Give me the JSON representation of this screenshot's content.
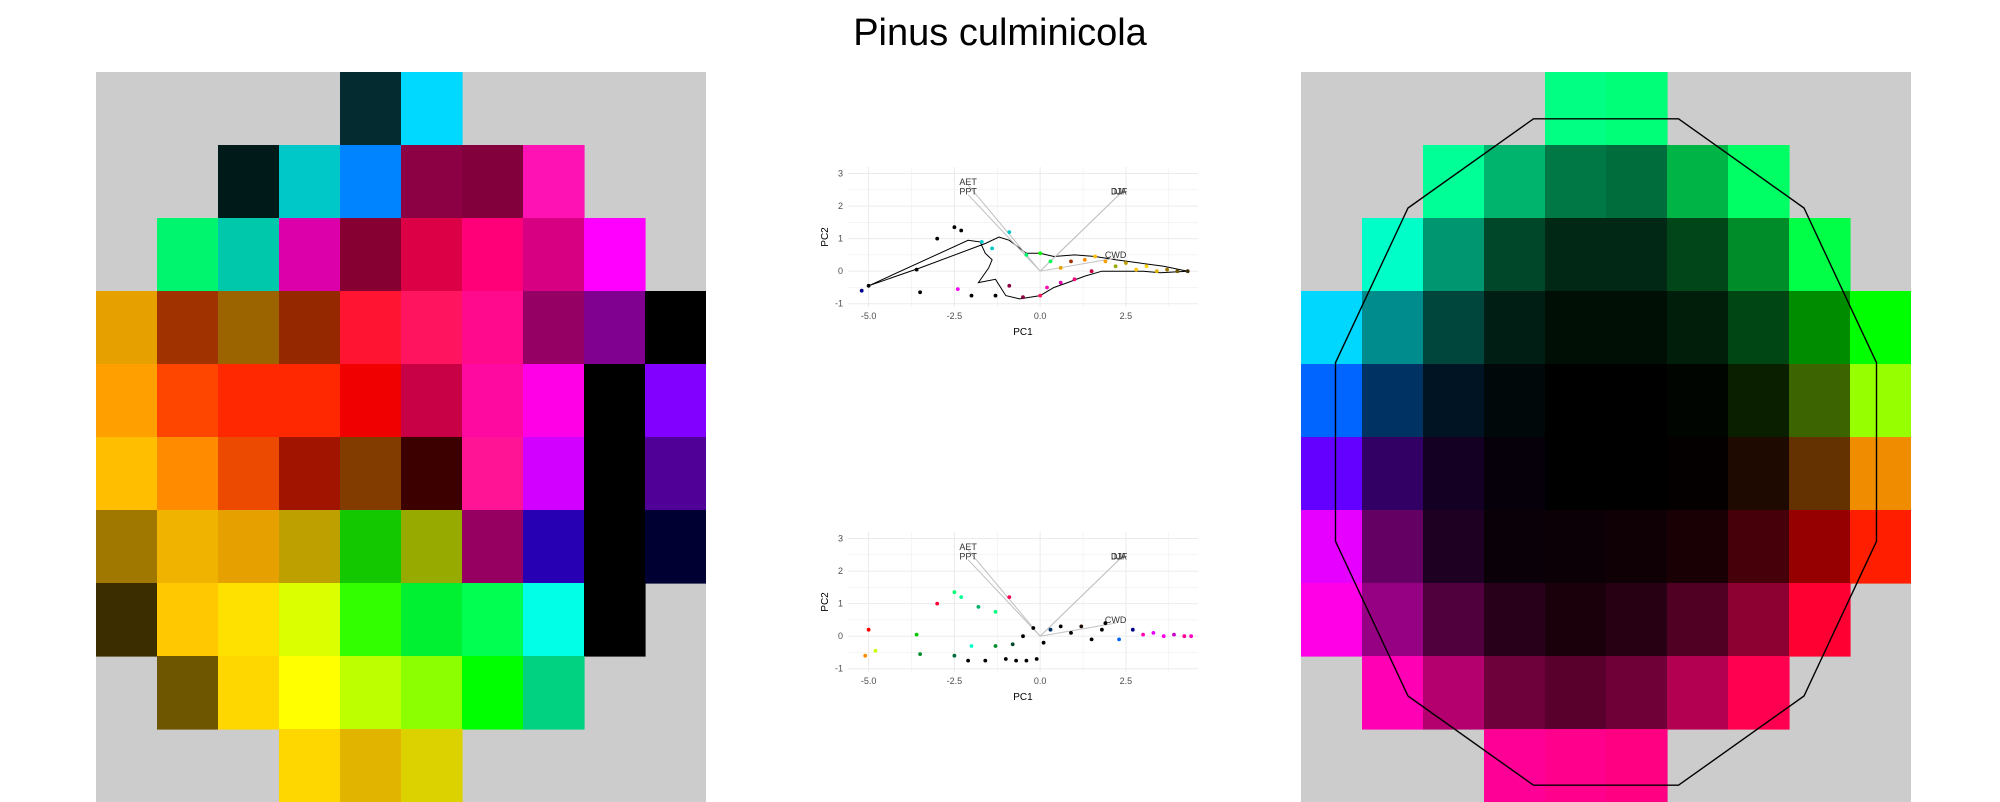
{
  "title": "Pinus culminicola",
  "colors": {
    "background": "#ffffff",
    "panel_gray": "#cccccc",
    "grid_line": "#ebebeb",
    "axis_text": "#4d4d4d",
    "arrow_line": "#c0c0c0"
  },
  "left_grid": {
    "cells": [
      [
        null,
        null,
        null,
        null,
        "#032b30",
        "#00d9ff",
        null,
        null,
        null,
        null
      ],
      [
        null,
        null,
        "#001a19",
        "#00c8c8",
        "#0084ff",
        "#8c0044",
        "#82003c",
        "#ff12b4",
        null,
        null
      ],
      [
        null,
        "#00f56e",
        "#00c8aa",
        "#dc00aa",
        "#870032",
        "#dc0046",
        "#ff0078",
        "#d70082",
        "#ff00ff",
        null
      ],
      [
        "#e6a000",
        "#a03200",
        "#9b6400",
        "#962800",
        "#ff1432",
        "#ff1460",
        "#ff0a8c",
        "#940064",
        "#800090",
        "#000000"
      ],
      [
        "#ffa000",
        "#ff4600",
        "#ff2800",
        "#ff2800",
        "#f00000",
        "#c80046",
        "#ff0aa0",
        "#ff00e6",
        "#000000",
        "#8200ff"
      ],
      [
        "#ffbe00",
        "#ff8c00",
        "#eb4a00",
        "#a01400",
        "#823c00",
        "#3c0000",
        "#ff1496",
        "#d200ff",
        "#000000",
        "#500096"
      ],
      [
        "#a07800",
        "#f0b400",
        "#e6a000",
        "#bea000",
        "#14c800",
        "#96aa00",
        "#960060",
        "#2800b4",
        "#000000",
        "#000032"
      ],
      [
        "#3c2d00",
        "#ffc800",
        "#ffe100",
        "#dcff00",
        "#32ff00",
        "#00f032",
        "#00ff50",
        "#00ffe6",
        "#000000",
        null
      ],
      [
        null,
        "#6e5500",
        "#ffd700",
        "#ffff00",
        "#beff00",
        "#8cff00",
        "#00ff00",
        "#00d282",
        null,
        null
      ],
      [
        null,
        null,
        null,
        "#ffd700",
        "#e1b400",
        "#dcd200",
        null,
        null,
        null,
        null
      ]
    ]
  },
  "right_grid": {
    "cells": [
      [
        null,
        null,
        null,
        null,
        "#00ff82",
        "#00ff78",
        null,
        null,
        null,
        null
      ],
      [
        null,
        null,
        "#00ff96",
        "#00b46e",
        "#007846",
        "#006e3c",
        "#00b446",
        "#00ff64",
        null,
        null
      ],
      [
        null,
        "#00ffc8",
        "#009670",
        "#004628",
        "#002814",
        "#002814",
        "#004619",
        "#008c28",
        "#00ff46",
        null
      ],
      [
        "#00d7ff",
        "#008c8c",
        "#00463c",
        "#001e14",
        "#000f05",
        "#000f05",
        "#001e0a",
        "#004614",
        "#008c00",
        "#00ff00"
      ],
      [
        "#0064ff",
        "#003264",
        "#001423",
        "#00080a",
        "#000000",
        "#000000",
        "#000500",
        "#0a1e00",
        "#3c6400",
        "#96ff00"
      ],
      [
        "#6400ff",
        "#320064",
        "#140023",
        "#05000a",
        "#000000",
        "#000000",
        "#050000",
        "#1e0a00",
        "#643200",
        "#f08c00"
      ],
      [
        "#e600ff",
        "#640064",
        "#1e0023",
        "#0a0008",
        "#0a0005",
        "#0f0005",
        "#190005",
        "#46000a",
        "#960000",
        "#ff1e00"
      ],
      [
        "#ff00e6",
        "#960082",
        "#50003c",
        "#280019",
        "#19000a",
        "#280014",
        "#500023",
        "#8c0032",
        "#ff0032",
        null
      ],
      [
        null,
        "#ff00b4",
        "#b4006e",
        "#6e003c",
        "#5a002d",
        "#6e0037",
        "#b40050",
        "#ff0050",
        null,
        null
      ],
      [
        null,
        null,
        null,
        "#ff0096",
        "#ff008c",
        "#ff0082",
        null,
        null,
        null,
        null
      ]
    ],
    "outline_color": "#000000"
  },
  "chart_data": [
    {
      "type": "scatter",
      "xlabel": "PC1",
      "ylabel": "PC2",
      "xlim": [
        -5.6,
        4.6
      ],
      "ylim": [
        -1.1,
        3.2
      ],
      "xticks": [
        "-5.0",
        "-2.5",
        "0.0",
        "2.5"
      ],
      "xtick_values": [
        -5,
        -2.5,
        0,
        2.5
      ],
      "yticks": [
        "-1",
        "0",
        "1",
        "2",
        "3"
      ],
      "ytick_values": [
        -1,
        0,
        1,
        2,
        3
      ],
      "grid": true,
      "loadings": [
        {
          "label": "AET",
          "x": -2.1,
          "y": 2.65
        },
        {
          "label": "PPT",
          "x": -2.1,
          "y": 2.35
        },
        {
          "label": "DJF",
          "x": 2.3,
          "y": 2.35
        },
        {
          "label": "JJA",
          "x": 2.3,
          "y": 2.35
        },
        {
          "label": "CWD",
          "x": 2.2,
          "y": 0.4
        }
      ],
      "points": [
        {
          "x": -5.0,
          "y": -0.45,
          "color": "#000000"
        },
        {
          "x": -5.2,
          "y": -0.6,
          "color": "#00008b"
        },
        {
          "x": -3.6,
          "y": 0.05,
          "color": "#000000"
        },
        {
          "x": -3.5,
          "y": -0.65,
          "color": "#000000"
        },
        {
          "x": -3.0,
          "y": 1.0,
          "color": "#000000"
        },
        {
          "x": -2.5,
          "y": 1.35,
          "color": "#000000"
        },
        {
          "x": -2.3,
          "y": 1.25,
          "color": "#000000"
        },
        {
          "x": -1.7,
          "y": 0.9,
          "color": "#00c8c8"
        },
        {
          "x": -1.4,
          "y": 0.7,
          "color": "#00c8c8"
        },
        {
          "x": -0.9,
          "y": 1.2,
          "color": "#00c8c8"
        },
        {
          "x": -2.4,
          "y": -0.55,
          "color": "#ff00ff"
        },
        {
          "x": -2.0,
          "y": -0.75,
          "color": "#000000"
        },
        {
          "x": -1.3,
          "y": -0.75,
          "color": "#000000"
        },
        {
          "x": -0.9,
          "y": -0.45,
          "color": "#8c0044"
        },
        {
          "x": -0.5,
          "y": -0.8,
          "color": "#8c0044"
        },
        {
          "x": 0.0,
          "y": -0.75,
          "color": "#ff1460"
        },
        {
          "x": 0.2,
          "y": -0.5,
          "color": "#ff12b4"
        },
        {
          "x": 0.6,
          "y": -0.35,
          "color": "#dc00aa"
        },
        {
          "x": 1.0,
          "y": -0.25,
          "color": "#ff0078"
        },
        {
          "x": 1.5,
          "y": 0.0,
          "color": "#c80046"
        },
        {
          "x": -0.4,
          "y": 0.5,
          "color": "#00f56e"
        },
        {
          "x": 0.0,
          "y": 0.55,
          "color": "#00ff00"
        },
        {
          "x": 0.3,
          "y": 0.3,
          "color": "#00ff50"
        },
        {
          "x": 0.6,
          "y": 0.1,
          "color": "#e6a000"
        },
        {
          "x": 0.9,
          "y": 0.3,
          "color": "#a03200"
        },
        {
          "x": 1.3,
          "y": 0.35,
          "color": "#ff8c00"
        },
        {
          "x": 1.6,
          "y": 0.45,
          "color": "#ffbe00"
        },
        {
          "x": 1.9,
          "y": 0.3,
          "color": "#ffa000"
        },
        {
          "x": 2.2,
          "y": 0.15,
          "color": "#96aa00"
        },
        {
          "x": 2.5,
          "y": 0.25,
          "color": "#bea000"
        },
        {
          "x": 2.8,
          "y": 0.05,
          "color": "#ffc800"
        },
        {
          "x": 3.1,
          "y": 0.15,
          "color": "#ffd700"
        },
        {
          "x": 3.4,
          "y": 0.0,
          "color": "#e1b400"
        },
        {
          "x": 3.7,
          "y": 0.05,
          "color": "#a07800"
        },
        {
          "x": 4.0,
          "y": 0.0,
          "color": "#6e5500"
        },
        {
          "x": 4.3,
          "y": 0.0,
          "color": "#3c2d00"
        }
      ],
      "hull": [
        [
          -5.0,
          -0.45
        ],
        [
          -2.1,
          0.95
        ],
        [
          -1.75,
          0.9
        ],
        [
          -1.6,
          0.55
        ],
        [
          -1.4,
          0.35
        ],
        [
          -1.5,
          0.1
        ],
        [
          -1.8,
          -0.35
        ],
        [
          -1.3,
          -0.25
        ],
        [
          -1.0,
          -0.75
        ],
        [
          -0.6,
          -0.85
        ],
        [
          0.0,
          -0.75
        ],
        [
          0.4,
          -0.5
        ],
        [
          0.8,
          -0.35
        ],
        [
          1.3,
          -0.15
        ],
        [
          1.8,
          0.0
        ],
        [
          2.4,
          0.0
        ],
        [
          3.0,
          0.0
        ],
        [
          3.5,
          -0.05
        ],
        [
          4.3,
          0.0
        ],
        [
          3.6,
          0.15
        ],
        [
          2.9,
          0.25
        ],
        [
          2.2,
          0.35
        ],
        [
          1.6,
          0.45
        ],
        [
          1.0,
          0.5
        ],
        [
          0.4,
          0.45
        ],
        [
          0.0,
          0.55
        ],
        [
          -0.4,
          0.55
        ],
        [
          -0.9,
          0.95
        ],
        [
          -1.2,
          1.05
        ],
        [
          -1.6,
          0.85
        ],
        [
          -3.5,
          0.1
        ],
        [
          -5.0,
          -0.45
        ]
      ]
    },
    {
      "type": "scatter",
      "xlabel": "PC1",
      "ylabel": "PC2",
      "xlim": [
        -5.6,
        4.6
      ],
      "ylim": [
        -1.1,
        3.2
      ],
      "xticks": [
        "-5.0",
        "-2.5",
        "0.0",
        "2.5"
      ],
      "xtick_values": [
        -5,
        -2.5,
        0,
        2.5
      ],
      "yticks": [
        "-1",
        "0",
        "1",
        "2",
        "3"
      ],
      "ytick_values": [
        -1,
        0,
        1,
        2,
        3
      ],
      "grid": true,
      "loadings": [
        {
          "label": "AET",
          "x": -2.1,
          "y": 2.65
        },
        {
          "label": "PPT",
          "x": -2.1,
          "y": 2.35
        },
        {
          "label": "DJF",
          "x": 2.3,
          "y": 2.35
        },
        {
          "label": "JJA",
          "x": 2.3,
          "y": 2.35
        },
        {
          "label": "CWD",
          "x": 2.2,
          "y": 0.4
        }
      ],
      "points": [
        {
          "x": -5.0,
          "y": 0.2,
          "color": "#ff0000"
        },
        {
          "x": -4.8,
          "y": -0.45,
          "color": "#c8ff00"
        },
        {
          "x": -5.1,
          "y": -0.6,
          "color": "#ff8c00"
        },
        {
          "x": -3.6,
          "y": 0.05,
          "color": "#00c800"
        },
        {
          "x": -3.5,
          "y": -0.55,
          "color": "#008c28"
        },
        {
          "x": -3.0,
          "y": 1.0,
          "color": "#ff0032"
        },
        {
          "x": -2.5,
          "y": 1.35,
          "color": "#00ff78"
        },
        {
          "x": -2.3,
          "y": 1.2,
          "color": "#00ff96"
        },
        {
          "x": -1.8,
          "y": 0.9,
          "color": "#00b46e"
        },
        {
          "x": -1.3,
          "y": 0.75,
          "color": "#00ff82"
        },
        {
          "x": -0.9,
          "y": 1.2,
          "color": "#ff0050"
        },
        {
          "x": -2.5,
          "y": -0.6,
          "color": "#006e3c"
        },
        {
          "x": -2.0,
          "y": -0.3,
          "color": "#00ffc8"
        },
        {
          "x": -2.1,
          "y": -0.75,
          "color": "#000000"
        },
        {
          "x": -1.6,
          "y": -0.75,
          "color": "#000000"
        },
        {
          "x": -1.3,
          "y": -0.3,
          "color": "#008c28"
        },
        {
          "x": -1.0,
          "y": -0.7,
          "color": "#000000"
        },
        {
          "x": -0.7,
          "y": -0.75,
          "color": "#000000"
        },
        {
          "x": -0.4,
          "y": -0.75,
          "color": "#000000"
        },
        {
          "x": -0.1,
          "y": -0.7,
          "color": "#000000"
        },
        {
          "x": -0.8,
          "y": -0.25,
          "color": "#004628"
        },
        {
          "x": -0.5,
          "y": 0.0,
          "color": "#000000"
        },
        {
          "x": -0.2,
          "y": 0.25,
          "color": "#000000"
        },
        {
          "x": 0.1,
          "y": -0.2,
          "color": "#000000"
        },
        {
          "x": 0.3,
          "y": 0.2,
          "color": "#003264"
        },
        {
          "x": 0.6,
          "y": 0.3,
          "color": "#000000"
        },
        {
          "x": 0.9,
          "y": 0.1,
          "color": "#000000"
        },
        {
          "x": 1.2,
          "y": 0.3,
          "color": "#1e0a00"
        },
        {
          "x": 1.5,
          "y": -0.1,
          "color": "#000000"
        },
        {
          "x": 1.8,
          "y": 0.2,
          "color": "#000000"
        },
        {
          "x": 1.9,
          "y": 0.4,
          "color": "#000000"
        },
        {
          "x": 2.3,
          "y": -0.1,
          "color": "#0064ff"
        },
        {
          "x": 2.7,
          "y": 0.2,
          "color": "#00008b"
        },
        {
          "x": 3.0,
          "y": 0.05,
          "color": "#ff00b4"
        },
        {
          "x": 3.3,
          "y": 0.1,
          "color": "#e600ff"
        },
        {
          "x": 3.6,
          "y": 0.0,
          "color": "#ff00e6"
        },
        {
          "x": 3.9,
          "y": 0.05,
          "color": "#c800c8"
        },
        {
          "x": 4.2,
          "y": 0.0,
          "color": "#ff0096"
        },
        {
          "x": 4.4,
          "y": 0.0,
          "color": "#ff00c8"
        }
      ]
    }
  ]
}
